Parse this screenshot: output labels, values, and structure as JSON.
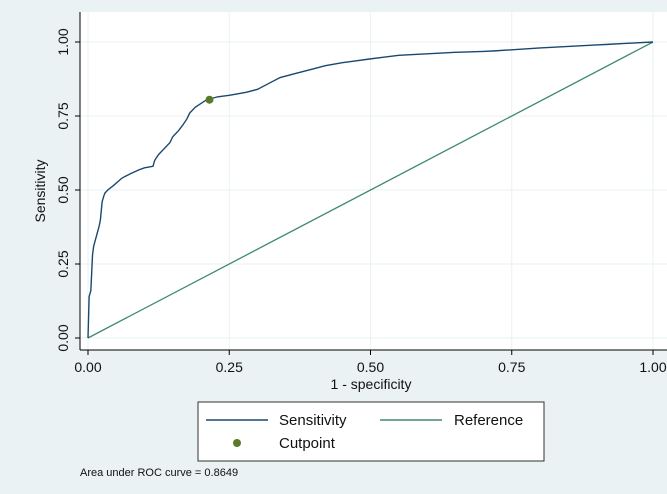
{
  "chart_data": {
    "type": "line",
    "xlabel": "1 - specificity",
    "ylabel": "Sensitivity",
    "xlim": [
      0,
      1
    ],
    "ylim": [
      0,
      1
    ],
    "x_ticks": [
      {
        "value": 0,
        "label": "0.00"
      },
      {
        "value": 0.25,
        "label": "0.25"
      },
      {
        "value": 0.5,
        "label": "0.50"
      },
      {
        "value": 0.75,
        "label": "0.75"
      },
      {
        "value": 1,
        "label": "1.00"
      }
    ],
    "y_ticks": [
      {
        "value": 0,
        "label": "0.00"
      },
      {
        "value": 0.25,
        "label": "0.25"
      },
      {
        "value": 0.5,
        "label": "0.50"
      },
      {
        "value": 0.75,
        "label": "0.75"
      },
      {
        "value": 1,
        "label": "1.00"
      }
    ],
    "grid": true,
    "legend_position": "bottom",
    "series": [
      {
        "name": "Sensitivity",
        "color": "#1a476f",
        "x": [
          0,
          0.002,
          0.005,
          0.008,
          0.01,
          0.015,
          0.02,
          0.022,
          0.025,
          0.028,
          0.03,
          0.035,
          0.045,
          0.06,
          0.075,
          0.09,
          0.1,
          0.115,
          0.118,
          0.125,
          0.135,
          0.145,
          0.15,
          0.16,
          0.168,
          0.175,
          0.18,
          0.19,
          0.21,
          0.23,
          0.25,
          0.28,
          0.3,
          0.32,
          0.34,
          0.37,
          0.4,
          0.42,
          0.45,
          0.47,
          0.5,
          0.52,
          0.55,
          0.6,
          0.65,
          0.7,
          0.72,
          0.76,
          0.8,
          0.85,
          0.9,
          0.92,
          0.95,
          1.0
        ],
        "y": [
          0,
          0.14,
          0.16,
          0.28,
          0.31,
          0.345,
          0.38,
          0.4,
          0.46,
          0.48,
          0.49,
          0.5,
          0.515,
          0.54,
          0.555,
          0.568,
          0.575,
          0.58,
          0.6,
          0.62,
          0.64,
          0.66,
          0.68,
          0.7,
          0.72,
          0.74,
          0.76,
          0.78,
          0.805,
          0.815,
          0.82,
          0.83,
          0.84,
          0.86,
          0.88,
          0.895,
          0.91,
          0.92,
          0.93,
          0.935,
          0.943,
          0.948,
          0.955,
          0.96,
          0.965,
          0.968,
          0.97,
          0.975,
          0.98,
          0.985,
          0.99,
          0.992,
          0.995,
          1.0
        ]
      },
      {
        "name": "Reference",
        "color": "#3e8a6e",
        "x": [
          0,
          1
        ],
        "y": [
          0,
          1
        ]
      }
    ],
    "markers": [
      {
        "name": "Cutpoint",
        "color": "#5a7a2a",
        "x": 0.215,
        "y": 0.805
      }
    ],
    "annotation": "Area under ROC curve = 0.8649"
  }
}
